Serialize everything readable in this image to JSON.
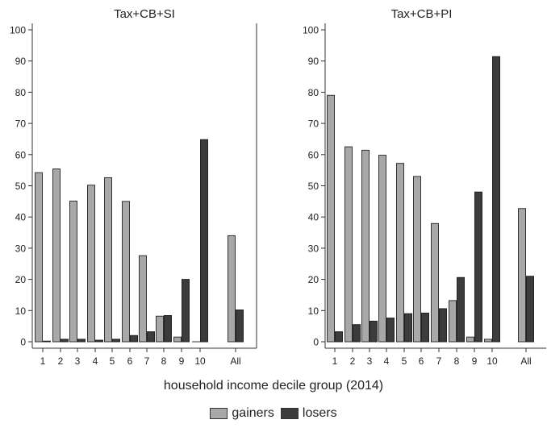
{
  "chart_data": {
    "type": "bar",
    "xlabel": "household income decile group (2014)",
    "legend": {
      "placement": "bottom",
      "entries": [
        "gainers",
        "losers"
      ]
    },
    "colors": {
      "gainers": "#a8a8a8",
      "losers": "#3c3c3c"
    },
    "ylim": [
      0,
      100
    ],
    "yticks": [
      0,
      10,
      20,
      30,
      40,
      50,
      60,
      70,
      80,
      90,
      100
    ],
    "categories": [
      "1",
      "2",
      "3",
      "4",
      "5",
      "6",
      "7",
      "8",
      "9",
      "10",
      "All"
    ],
    "panels": [
      {
        "title": "Tax+CB+SI",
        "series": [
          {
            "name": "gainers",
            "values": [
              54.2,
              55.4,
              45.1,
              50.2,
              52.6,
              45.0,
              27.6,
              8.2,
              1.5,
              0,
              34.0
            ]
          },
          {
            "name": "losers",
            "values": [
              0.2,
              0.8,
              0.8,
              0.5,
              0.8,
              2.0,
              3.2,
              8.4,
              20.0,
              64.8,
              10.2
            ]
          }
        ]
      },
      {
        "title": "Tax+CB+PI",
        "series": [
          {
            "name": "gainers",
            "values": [
              79.0,
              62.5,
              61.4,
              59.8,
              57.2,
              53.0,
              37.9,
              13.2,
              1.5,
              0.8,
              42.7
            ]
          },
          {
            "name": "losers",
            "values": [
              3.2,
              5.5,
              6.6,
              7.6,
              9.0,
              9.2,
              10.6,
              20.6,
              48.0,
              91.4,
              21.0
            ]
          }
        ]
      }
    ]
  }
}
